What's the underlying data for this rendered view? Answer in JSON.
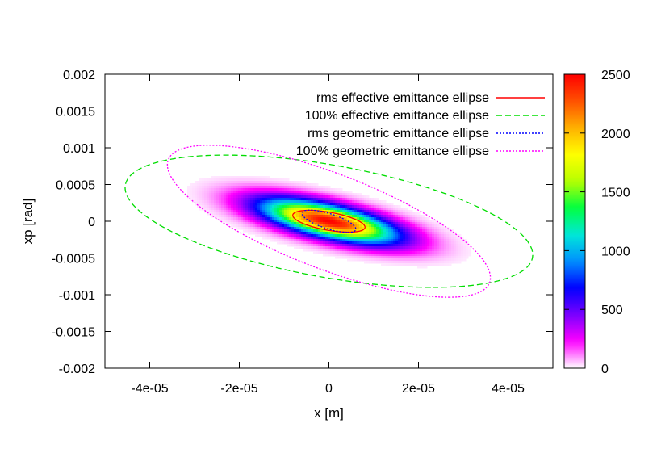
{
  "chart_data": {
    "type": "heatmap",
    "title": "",
    "xlabel": "x [m]",
    "ylabel": "xp [rad]",
    "xlim": [
      -5e-05,
      5e-05
    ],
    "ylim": [
      -0.002,
      0.002
    ],
    "x_ticks": [
      -4e-05,
      -2e-05,
      0,
      2e-05,
      4e-05
    ],
    "x_tick_labels": [
      "-4e-05",
      "-2e-05",
      "0",
      "2e-05",
      "4e-05"
    ],
    "y_ticks": [
      -0.002,
      -0.0015,
      -0.001,
      -0.0005,
      0,
      0.0005,
      0.001,
      0.0015,
      0.002
    ],
    "y_tick_labels": [
      "-0.002",
      "-0.0015",
      "-0.001",
      "-0.0005",
      "0",
      "0.0005",
      "0.001",
      "0.0015",
      "0.002"
    ],
    "colorbar": {
      "range": [
        0,
        2500
      ],
      "ticks": [
        0,
        500,
        1000,
        1500,
        2000,
        2500
      ],
      "tick_labels": [
        "0",
        "500",
        "1000",
        "1500",
        "2000",
        "2500"
      ],
      "palette": [
        "#ffffff",
        "#ff00ff",
        "#7a00ff",
        "#0000ff",
        "#0090ff",
        "#00e8d8",
        "#00ff40",
        "#b8ff00",
        "#ffff00",
        "#ffb000",
        "#ff5000",
        "#ff0000"
      ]
    },
    "density": {
      "center": [
        0,
        0
      ],
      "peak": 2500,
      "covariance": {
        "sxx": 1.04e-10,
        "sxy": -1.33e-09,
        "syy": 4e-08
      }
    },
    "legend_position": "top-right",
    "grid": false,
    "series": [
      {
        "name": "rms effective emittance ellipse",
        "color": "#ff0000",
        "dash": "solid",
        "ellipse": {
          "sxx": 6.5e-11,
          "sxy": -6.5e-10,
          "syy": 2.2e-08
        }
      },
      {
        "name": "100% effective emittance ellipse",
        "color": "#00dd00",
        "dash": "dashed",
        "ellipse": {
          "sxx": 2.07e-09,
          "sxy": -2.08e-08,
          "syy": 8.1e-07
        }
      },
      {
        "name": "rms geometric emittance ellipse",
        "color": "#0000ff",
        "dash": "dotted",
        "ellipse": {
          "sxx": 3.6e-11,
          "sxy": -6.4e-10,
          "syy": 2.3e-08
        }
      },
      {
        "name": "100% geometric emittance ellipse",
        "color": "#ff00ff",
        "dash": "dotted",
        "ellipse": {
          "sxx": 1.3e-09,
          "sxy": -2.77e-08,
          "syy": 1.07e-06
        }
      }
    ]
  }
}
